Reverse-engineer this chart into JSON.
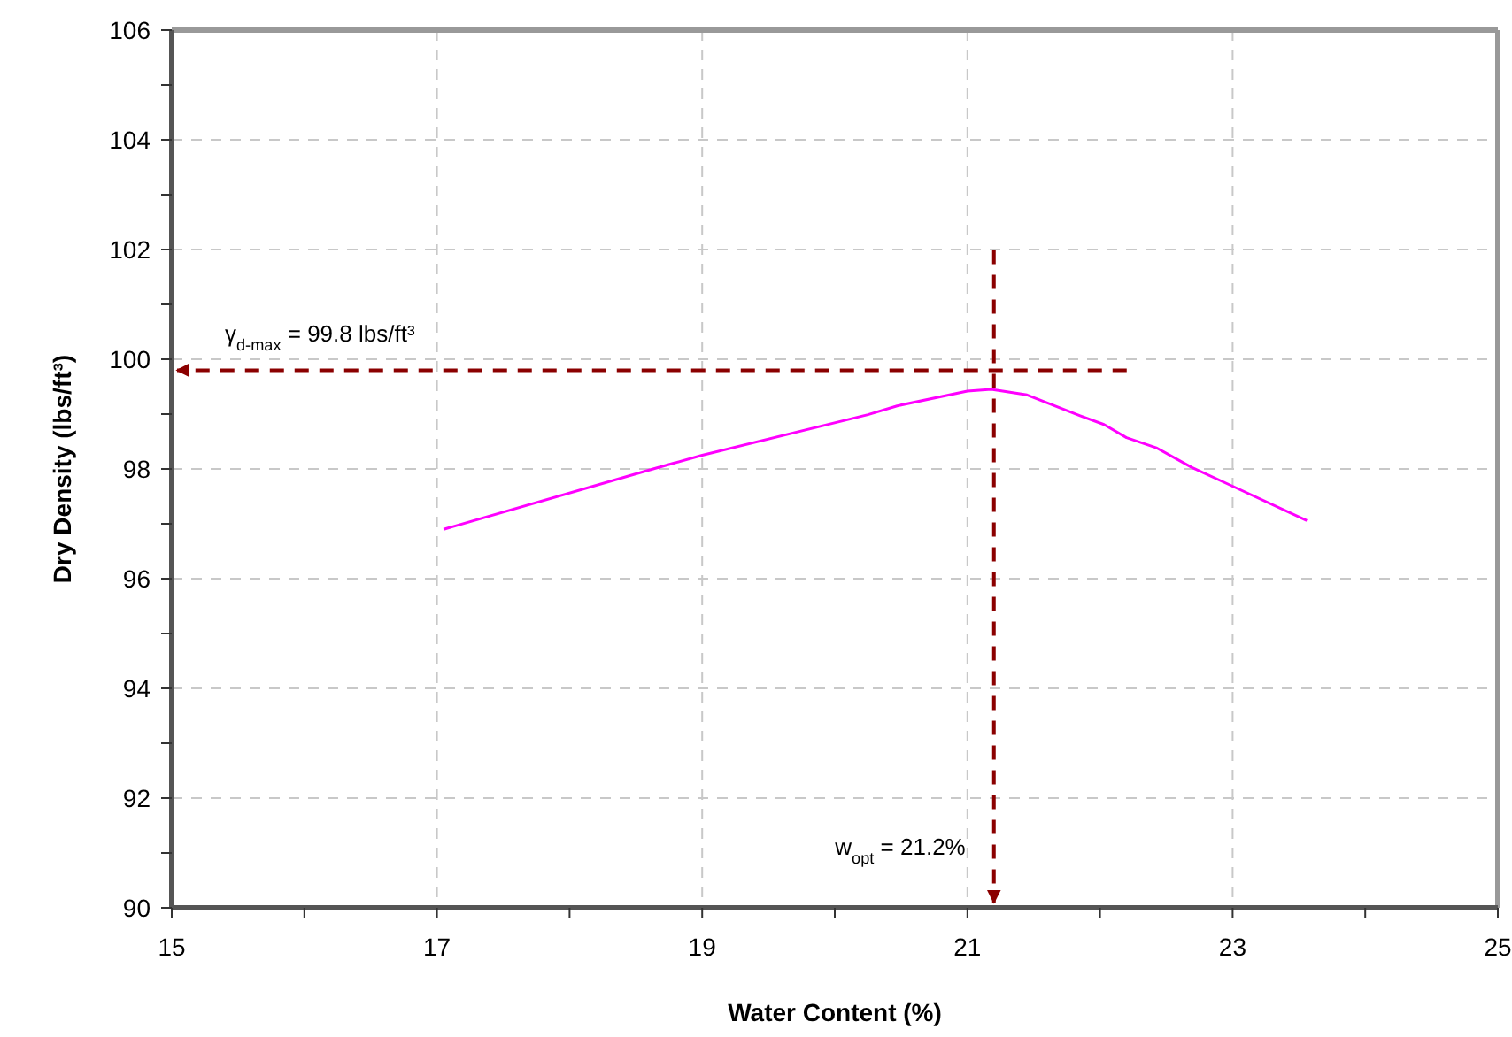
{
  "chart_data": {
    "type": "line",
    "xlabel": "Water Content (%)",
    "ylabel": "Dry Density (lbs/ft³)",
    "xlim": [
      15,
      25
    ],
    "xticks": [
      15,
      {
        "value": 16,
        "label": null
      },
      17,
      {
        "value": 18,
        "label": null
      },
      19,
      {
        "value": 20,
        "label": null
      },
      21,
      {
        "value": 22,
        "label": null
      },
      23,
      {
        "value": 24,
        "label": null
      },
      25
    ],
    "ylim": [
      90,
      106
    ],
    "yticks": [
      90,
      {
        "value": 91,
        "label": null
      },
      92,
      {
        "value": 93,
        "label": null
      },
      94,
      {
        "value": 95,
        "label": null
      },
      96,
      {
        "value": 97,
        "label": null
      },
      98,
      {
        "value": 99,
        "label": null
      },
      100,
      {
        "value": 101,
        "label": null
      },
      102,
      {
        "value": 103,
        "label": null
      },
      104,
      {
        "value": 105,
        "label": null
      },
      106
    ],
    "grid": true,
    "marker": "none",
    "line_style": "solid",
    "series": [
      {
        "color": "#ff00ff",
        "x": [
          17.05,
          18.6,
          19.0,
          20.25,
          20.47,
          21.0,
          21.18,
          21.45,
          21.85,
          22.03,
          22.2,
          22.43,
          22.69,
          22.96,
          23.56
        ],
        "values": [
          96.9,
          97.98,
          98.25,
          98.99,
          99.15,
          99.42,
          99.45,
          99.35,
          98.97,
          98.81,
          98.57,
          98.38,
          98.03,
          97.73,
          97.06
        ]
      }
    ],
    "ref_lines": [
      {
        "axis": "y",
        "value": 99.8,
        "label": "γ$_{d-max}$ = 99.8 lbs/ft³",
        "color": "#8b0000",
        "line_style": "dashed"
      },
      {
        "axis": "x",
        "value": 21.2,
        "label": "w$_{opt}$ = 21.2%",
        "color": "#8b0000",
        "line_style": "dashed"
      }
    ]
  }
}
